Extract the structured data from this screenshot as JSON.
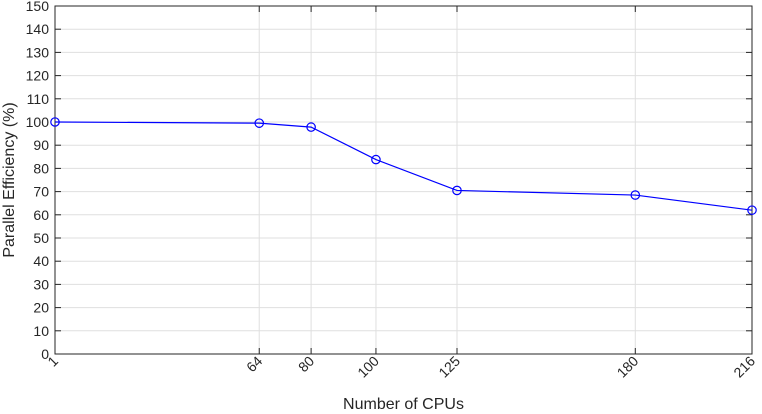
{
  "chart_data": {
    "type": "line",
    "title": "",
    "xlabel": "Number of CPUs",
    "ylabel": "Parallel Efficiency (%)",
    "xlim": [
      1,
      216
    ],
    "ylim": [
      0,
      150
    ],
    "x_ticks": [
      1,
      64,
      80,
      100,
      125,
      180,
      216
    ],
    "x_tick_labels": [
      "1",
      "64",
      "80",
      "100",
      "125",
      "180",
      "216"
    ],
    "y_ticks": [
      0,
      10,
      20,
      30,
      40,
      50,
      60,
      70,
      80,
      90,
      100,
      110,
      120,
      130,
      140,
      150
    ],
    "y_tick_labels": [
      "0",
      "10",
      "20",
      "30",
      "40",
      "50",
      "60",
      "70",
      "80",
      "90",
      "100",
      "110",
      "120",
      "130",
      "140",
      "150"
    ],
    "grid": true,
    "series": [
      {
        "color": "#0000ff",
        "marker": "circle",
        "x": [
          1,
          64,
          80,
          100,
          125,
          180,
          216
        ],
        "y": [
          100,
          99.5,
          97.8,
          83.8,
          70.5,
          68.5,
          62
        ]
      }
    ]
  }
}
